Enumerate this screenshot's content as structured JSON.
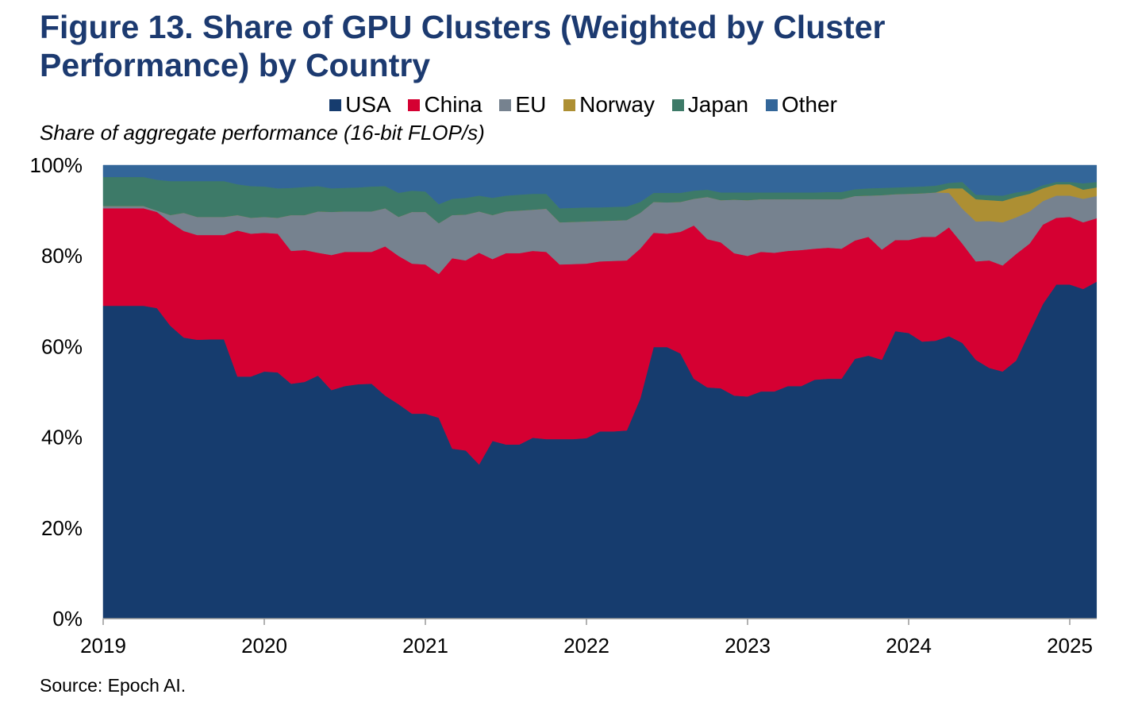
{
  "title": "Figure 13. Share of GPU Clusters (Weighted by Cluster Performance) by Country",
  "source": "Source: Epoch AI.",
  "chart_data": {
    "type": "area",
    "stacked": true,
    "title": "Figure 13. Share of GPU Clusters (Weighted by Cluster Performance) by Country",
    "ylabel": "Share of aggregate performance (16-bit FLOP/s)",
    "xlabel": "",
    "ylim": [
      0,
      100
    ],
    "y_ticks": [
      "0%",
      "20%",
      "40%",
      "60%",
      "80%",
      "100%"
    ],
    "y_tick_values": [
      0,
      20,
      40,
      60,
      80,
      100
    ],
    "x_ticks": [
      "2019",
      "2020",
      "2021",
      "2022",
      "2023",
      "2024",
      "2025"
    ],
    "legend_position": "top",
    "grid": false,
    "x": [
      "2019-01",
      "2019-02",
      "2019-03",
      "2019-04",
      "2019-05",
      "2019-06",
      "2019-07",
      "2019-08",
      "2019-09",
      "2019-10",
      "2019-11",
      "2019-12",
      "2020-01",
      "2020-02",
      "2020-03",
      "2020-04",
      "2020-05",
      "2020-06",
      "2020-07",
      "2020-08",
      "2020-09",
      "2020-10",
      "2020-11",
      "2020-12",
      "2021-01",
      "2021-02",
      "2021-03",
      "2021-04",
      "2021-05",
      "2021-06",
      "2021-07",
      "2021-08",
      "2021-09",
      "2021-10",
      "2021-11",
      "2021-12",
      "2022-01",
      "2022-02",
      "2022-03",
      "2022-04",
      "2022-05",
      "2022-06",
      "2022-07",
      "2022-08",
      "2022-09",
      "2022-10",
      "2022-11",
      "2022-12",
      "2023-01",
      "2023-02",
      "2023-03",
      "2023-04",
      "2023-05",
      "2023-06",
      "2023-07",
      "2023-08",
      "2023-09",
      "2023-10",
      "2023-11",
      "2023-12",
      "2024-01",
      "2024-02",
      "2024-03",
      "2024-04",
      "2024-05",
      "2024-06",
      "2024-07",
      "2024-08",
      "2024-09",
      "2024-10",
      "2024-11",
      "2024-12",
      "2025-01",
      "2025-02",
      "2025-03"
    ],
    "series": [
      {
        "name": "USA",
        "color": "#163c6e",
        "values": [
          69.0,
          69.0,
          69.0,
          69.0,
          68.5,
          64.6,
          62.0,
          61.5,
          61.6,
          61.6,
          53.4,
          53.4,
          54.5,
          54.3,
          51.8,
          52.2,
          53.6,
          50.4,
          51.3,
          51.7,
          51.8,
          49.2,
          47.3,
          45.2,
          45.2,
          44.3,
          37.5,
          37.1,
          34.0,
          39.2,
          38.4,
          38.4,
          39.9,
          39.6,
          39.6,
          39.6,
          39.8,
          41.3,
          41.3,
          41.5,
          48.5,
          59.9,
          59.9,
          58.5,
          52.9,
          51.0,
          50.8,
          49.2,
          49.0,
          50.1,
          50.1,
          51.3,
          51.3,
          52.7,
          52.9,
          52.9,
          57.3,
          58.0,
          57.1,
          63.4,
          63.0,
          61.1,
          61.3,
          62.3,
          60.8,
          57.1,
          55.3,
          54.5,
          56.9,
          63.2,
          69.4,
          73.7,
          73.7,
          72.7,
          74.3
        ]
      },
      {
        "name": "China",
        "color": "#d50032",
        "values": [
          21.5,
          21.5,
          21.5,
          21.5,
          21.2,
          22.8,
          23.5,
          23.1,
          23.0,
          23.0,
          32.2,
          31.5,
          30.6,
          30.6,
          29.3,
          29.1,
          27.1,
          29.8,
          29.6,
          29.2,
          29.1,
          32.9,
          32.7,
          33.1,
          32.9,
          31.7,
          42.0,
          41.9,
          46.7,
          40.1,
          42.2,
          42.2,
          41.2,
          41.3,
          38.5,
          38.6,
          38.5,
          37.5,
          37.6,
          37.5,
          33.1,
          25.2,
          25.0,
          26.8,
          33.8,
          32.7,
          32.2,
          31.4,
          31.0,
          30.8,
          30.6,
          29.8,
          30.0,
          28.9,
          28.9,
          28.7,
          26.1,
          26.2,
          24.3,
          20.1,
          20.5,
          23.1,
          22.9,
          24.0,
          21.9,
          21.7,
          23.7,
          23.4,
          23.5,
          19.5,
          17.5,
          14.7,
          14.9,
          14.7,
          14.0
        ]
      },
      {
        "name": "EU",
        "color": "#76828f",
        "values": [
          0.5,
          0.5,
          0.5,
          0.5,
          0.3,
          1.6,
          4.0,
          4.0,
          4.0,
          4.0,
          3.4,
          3.5,
          3.5,
          3.5,
          7.9,
          7.7,
          9.1,
          9.5,
          8.9,
          8.9,
          8.9,
          8.4,
          8.6,
          11.4,
          11.6,
          11.2,
          9.5,
          10.1,
          9.1,
          9.7,
          9.2,
          9.4,
          9.1,
          9.5,
          9.3,
          9.3,
          9.3,
          8.9,
          8.9,
          8.9,
          7.9,
          6.8,
          6.9,
          6.6,
          5.9,
          9.3,
          9.3,
          11.8,
          12.3,
          11.6,
          11.8,
          11.4,
          11.2,
          10.9,
          10.7,
          10.9,
          9.8,
          9.1,
          12.0,
          10.1,
          10.2,
          9.6,
          9.8,
          7.6,
          7.7,
          8.8,
          8.7,
          9.5,
          8.1,
          7.1,
          5.2,
          4.9,
          4.7,
          5.2,
          4.9
        ]
      },
      {
        "name": "Norway",
        "color": "#ad8f33",
        "values": [
          0,
          0,
          0,
          0,
          0,
          0,
          0,
          0,
          0,
          0,
          0,
          0,
          0,
          0,
          0,
          0,
          0,
          0,
          0,
          0,
          0,
          0,
          0,
          0,
          0,
          0,
          0,
          0,
          0,
          0,
          0,
          0,
          0,
          0,
          0,
          0,
          0,
          0,
          0,
          0,
          0,
          0,
          0,
          0,
          0,
          0,
          0,
          0,
          0,
          0,
          0,
          0,
          0,
          0,
          0,
          0,
          0,
          0,
          0,
          0,
          0,
          0,
          0,
          1.0,
          4.5,
          4.9,
          4.6,
          4.7,
          4.5,
          3.9,
          2.8,
          2.5,
          2.5,
          2.0,
          1.9
        ]
      },
      {
        "name": "Japan",
        "color": "#3d7a68",
        "values": [
          6.4,
          6.4,
          6.4,
          6.4,
          6.8,
          7.5,
          7.0,
          7.9,
          7.9,
          7.9,
          6.8,
          7.0,
          6.7,
          6.5,
          6.0,
          6.2,
          5.6,
          5.2,
          5.2,
          5.3,
          5.5,
          4.9,
          5.3,
          4.7,
          4.5,
          4.2,
          3.6,
          3.7,
          3.5,
          3.8,
          3.5,
          3.5,
          3.5,
          3.3,
          3.1,
          3.1,
          3.1,
          3.0,
          3.0,
          3.0,
          2.4,
          2.0,
          2.1,
          2.0,
          1.8,
          1.6,
          1.7,
          1.6,
          1.7,
          1.5,
          1.5,
          1.5,
          1.5,
          1.5,
          1.6,
          1.6,
          1.5,
          1.6,
          1.6,
          1.5,
          1.5,
          1.5,
          1.5,
          1.2,
          1.4,
          1.0,
          1.1,
          1.2,
          1.0,
          0.7,
          0.7,
          0.5,
          0.5,
          1.4,
          1.2
        ]
      },
      {
        "name": "Other",
        "color": "#336699",
        "values": [
          2.6,
          2.6,
          2.6,
          2.6,
          3.2,
          3.5,
          3.5,
          3.5,
          3.5,
          3.5,
          4.2,
          4.6,
          4.7,
          5.1,
          5.0,
          4.8,
          4.6,
          5.1,
          5.0,
          4.9,
          4.7,
          4.6,
          6.1,
          5.6,
          5.8,
          8.6,
          7.4,
          7.2,
          6.7,
          7.2,
          6.7,
          6.5,
          6.3,
          6.3,
          9.5,
          9.4,
          9.3,
          9.3,
          9.2,
          9.1,
          8.1,
          6.1,
          6.1,
          6.1,
          5.6,
          5.4,
          6.0,
          6.0,
          6.0,
          6.0,
          6.0,
          6.0,
          6.0,
          6.0,
          5.9,
          5.9,
          5.3,
          5.1,
          5.0,
          4.9,
          4.8,
          4.7,
          4.5,
          3.9,
          3.7,
          6.5,
          6.6,
          6.7,
          6.0,
          5.6,
          4.4,
          3.7,
          3.7,
          4.0,
          3.7
        ]
      }
    ]
  }
}
